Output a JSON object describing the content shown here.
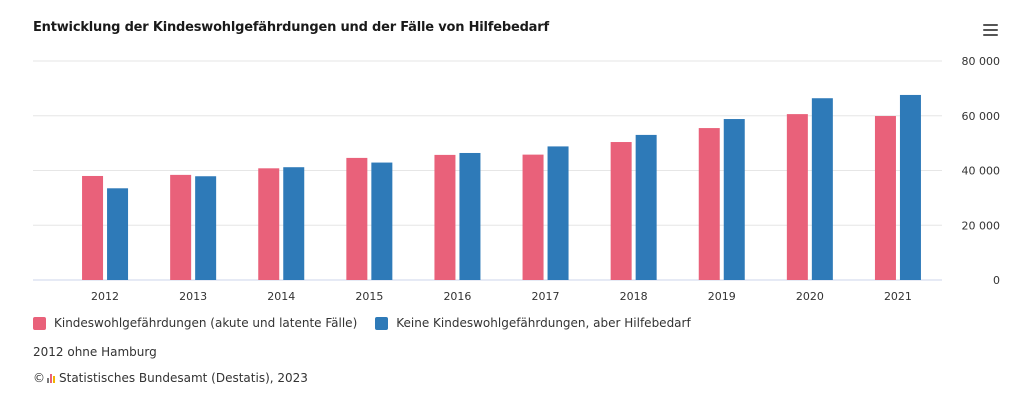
{
  "header": {
    "title": "Entwicklung der Kindeswohlgefährdungen und der Fälle von Hilfebedarf",
    "menu_icon": "hamburger-menu-icon"
  },
  "colors": {
    "series1": "#e9617a",
    "series2": "#2e7ab8",
    "grid": "#e6e6e6",
    "axis": "#ccd6eb"
  },
  "chart_data": {
    "type": "bar",
    "title": "Entwicklung der Kindeswohlgefährdungen und der Fälle von Hilfebedarf",
    "categories": [
      "2012",
      "2013",
      "2014",
      "2015",
      "2016",
      "2017",
      "2018",
      "2019",
      "2020",
      "2021"
    ],
    "series": [
      {
        "name": "Kindeswohlgefährdungen (akute und latente Fälle)",
        "color": "#e9617a",
        "values": [
          38000,
          38400,
          40800,
          44600,
          45700,
          45800,
          50400,
          55500,
          60600,
          59900
        ]
      },
      {
        "name": "Keine Kindeswohlgefährdungen, aber Hilfebedarf",
        "color": "#2e7ab8",
        "values": [
          33500,
          37900,
          41200,
          42900,
          46400,
          48800,
          53000,
          58800,
          66400,
          67600
        ]
      }
    ],
    "yticks": [
      "0",
      "20 000",
      "40 000",
      "60 000",
      "80 000"
    ],
    "ylim": [
      0,
      80000
    ],
    "ytick_values": [
      0,
      20000,
      40000,
      60000,
      80000
    ],
    "yaxis_position": "right",
    "grid": true,
    "legend_position": "bottom-left"
  },
  "footer": {
    "note": "2012 ohne Hamburg",
    "copyright_symbol": "©",
    "credits": "Statistisches Bundesamt (Destatis), 2023",
    "logo_colors": [
      "#7a7a7a",
      "#e9617a",
      "#f0b400"
    ]
  }
}
